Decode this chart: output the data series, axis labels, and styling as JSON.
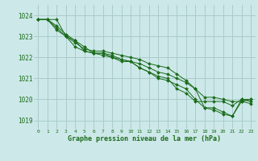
{
  "title": "Graphe pression niveau de la mer (hPa)",
  "background_color": "#cce8e8",
  "grid_color": "#aacccc",
  "line_color": "#1a6b1a",
  "text_color": "#1a6b1a",
  "xlim": [
    -0.5,
    23.5
  ],
  "ylim": [
    1018.6,
    1024.5
  ],
  "yticks": [
    1019,
    1020,
    1021,
    1022,
    1023,
    1024
  ],
  "xticks": [
    0,
    1,
    2,
    3,
    4,
    5,
    6,
    7,
    8,
    9,
    10,
    11,
    12,
    13,
    14,
    15,
    16,
    17,
    18,
    19,
    20,
    21,
    22,
    23
  ],
  "series": [
    [
      1023.8,
      1023.8,
      1023.4,
      1023.0,
      1022.8,
      1022.5,
      1022.2,
      1022.2,
      1022.0,
      1021.8,
      1021.8,
      1021.7,
      1021.5,
      1021.3,
      1021.2,
      1021.0,
      1020.8,
      1020.5,
      1019.6,
      1019.5,
      1019.3,
      1019.2,
      1020.0,
      1020.0
    ],
    [
      1023.8,
      1023.8,
      1023.5,
      1023.1,
      1022.8,
      1022.3,
      1022.2,
      1022.1,
      1022.0,
      1021.9,
      1021.8,
      1021.5,
      1021.3,
      1021.1,
      1021.0,
      1020.5,
      1020.3,
      1019.9,
      1019.9,
      1019.9,
      1019.9,
      1019.7,
      1020.0,
      1019.9
    ],
    [
      1023.8,
      1023.8,
      1023.3,
      1023.0,
      1022.7,
      1022.4,
      1022.3,
      1022.3,
      1022.2,
      1022.1,
      1022.0,
      1021.9,
      1021.7,
      1021.6,
      1021.5,
      1021.2,
      1020.9,
      1020.5,
      1020.1,
      1020.1,
      1020.0,
      1019.9,
      1019.9,
      1019.8
    ],
    [
      1023.8,
      1023.8,
      1023.8,
      1023.0,
      1022.5,
      1022.3,
      1022.2,
      1022.2,
      1022.1,
      1021.9,
      1021.8,
      1021.5,
      1021.3,
      1021.0,
      1020.9,
      1020.7,
      1020.5,
      1020.0,
      1019.6,
      1019.6,
      1019.4,
      1019.2,
      1019.9,
      1020.0
    ]
  ]
}
